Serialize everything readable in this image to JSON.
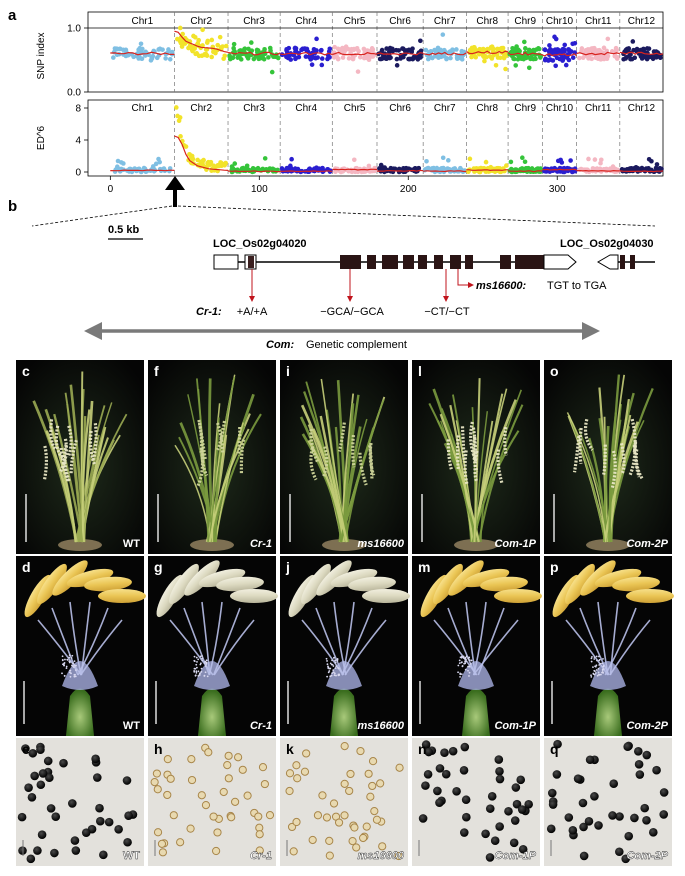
{
  "figure": {
    "panel_a": {
      "label": "a",
      "top_ylabel": "SNP index",
      "bottom_ylabel": "ED^6",
      "top_yticks": [
        "1.0",
        "0.0"
      ],
      "bottom_yticks": [
        "8",
        "4",
        "0"
      ],
      "xticks": [
        "0",
        "100",
        "200",
        "300"
      ],
      "chromosomes": [
        "Chr1",
        "Chr2",
        "Chr3",
        "Chr4",
        "Chr5",
        "Chr6",
        "Chr7",
        "Chr8",
        "Chr9",
        "Chr10",
        "Chr11",
        "Chr12"
      ],
      "chrom_colors": [
        "#7fbfe3",
        "#f2e32a",
        "#35c43a",
        "#2a1fd0",
        "#f4b7c2",
        "#1b1a5e",
        "#7fbfe3",
        "#f2e32a",
        "#35c43a",
        "#2a1fd0",
        "#f4b7c2",
        "#1b1a5e"
      ],
      "chrom_bounds": [
        0,
        43,
        79,
        114,
        149,
        179,
        210,
        239,
        267,
        290,
        313,
        342,
        371
      ]
    },
    "panel_b": {
      "label": "b",
      "scale_label": "0.5 kb",
      "gene_left": "LOC_Os02g04020",
      "gene_right": "LOC_Os02g04030",
      "mutation_label": "ms16600:",
      "mutation_text": "TGT to TGA",
      "cr1_label": "Cr-1:",
      "cr1_muts": [
        "+A/+A",
        "−GCA/−GCA",
        "−CT/−CT"
      ],
      "com_label": "Com:",
      "com_text": "Genetic complement"
    },
    "photo_rows": [
      {
        "panels": [
          {
            "letter": "c",
            "caption": "WT"
          },
          {
            "letter": "f",
            "caption": "Cr-1"
          },
          {
            "letter": "i",
            "caption": "ms16600"
          },
          {
            "letter": "l",
            "caption": "Com-1P"
          },
          {
            "letter": "o",
            "caption": "Com-2P"
          }
        ]
      },
      {
        "panels": [
          {
            "letter": "d",
            "caption": "WT"
          },
          {
            "letter": "g",
            "caption": "Cr-1"
          },
          {
            "letter": "j",
            "caption": "ms16600"
          },
          {
            "letter": "m",
            "caption": "Com-1P"
          },
          {
            "letter": "p",
            "caption": "Com-2P"
          }
        ]
      },
      {
        "panels": [
          {
            "letter": "e",
            "caption": "WT"
          },
          {
            "letter": "h",
            "caption": "Cr-1"
          },
          {
            "letter": "k",
            "caption": "ms16600"
          },
          {
            "letter": "n",
            "caption": "Com-1P"
          },
          {
            "letter": "q",
            "caption": "Com-2P"
          }
        ]
      }
    ]
  },
  "chart_data": [
    {
      "type": "scatter",
      "title": "",
      "ylabel": "SNP index",
      "xlabel": "",
      "xlim": [
        -15,
        371
      ],
      "ylim": [
        0,
        1.25
      ],
      "yticks": [
        0.0,
        1.0
      ],
      "xticks": [
        0,
        100,
        200,
        300
      ],
      "reference_line": 1.0,
      "series": [
        {
          "name": "Chr1",
          "x_range": [
            0,
            43
          ],
          "trend": 0.6
        },
        {
          "name": "Chr2",
          "x_range": [
            43,
            79
          ],
          "trend_points": [
            [
              45,
              0.95
            ],
            [
              50,
              0.8
            ],
            [
              60,
              0.7
            ],
            [
              70,
              0.68
            ],
            [
              78,
              0.62
            ]
          ]
        },
        {
          "name": "Chr3",
          "x_range": [
            79,
            114
          ],
          "trend": 0.6
        },
        {
          "name": "Chr4",
          "x_range": [
            114,
            149
          ],
          "trend": 0.6
        },
        {
          "name": "Chr5",
          "x_range": [
            149,
            179
          ],
          "trend": 0.6
        },
        {
          "name": "Chr6",
          "x_range": [
            179,
            210
          ],
          "trend": 0.6
        },
        {
          "name": "Chr7",
          "x_range": [
            210,
            239
          ],
          "trend": 0.6
        },
        {
          "name": "Chr8",
          "x_range": [
            239,
            267
          ],
          "trend": 0.62
        },
        {
          "name": "Chr9",
          "x_range": [
            267,
            290
          ],
          "trend": 0.6
        },
        {
          "name": "Chr10",
          "x_range": [
            290,
            313
          ],
          "trend": 0.58
        },
        {
          "name": "Chr11",
          "x_range": [
            313,
            342
          ],
          "trend": 0.6
        },
        {
          "name": "Chr12",
          "x_range": [
            342,
            371
          ],
          "trend": 0.6
        }
      ]
    },
    {
      "type": "scatter",
      "title": "",
      "ylabel": "ED^6",
      "xlabel": "",
      "xlim": [
        -15,
        371
      ],
      "ylim": [
        -0.5,
        9
      ],
      "yticks": [
        0,
        4,
        8
      ],
      "xticks": [
        0,
        100,
        200,
        300
      ],
      "series": [
        {
          "name": "Chr1",
          "x_range": [
            0,
            43
          ],
          "trend": 0.2
        },
        {
          "name": "Chr2",
          "x_range": [
            43,
            79
          ],
          "trend_points": [
            [
              45,
              4.5
            ],
            [
              48,
              3.5
            ],
            [
              52,
              1.6
            ],
            [
              58,
              0.8
            ],
            [
              66,
              0.4
            ],
            [
              78,
              0.2
            ]
          ]
        },
        {
          "name": "Chr3",
          "x_range": [
            79,
            114
          ],
          "trend": 0.1
        },
        {
          "name": "Chr4",
          "x_range": [
            114,
            149
          ],
          "trend": 0.1
        },
        {
          "name": "Chr5",
          "x_range": [
            149,
            179
          ],
          "trend": 0.3
        },
        {
          "name": "Chr6",
          "x_range": [
            179,
            210
          ],
          "trend": 0.15
        },
        {
          "name": "Chr7",
          "x_range": [
            210,
            239
          ],
          "trend": 0.1
        },
        {
          "name": "Chr8",
          "x_range": [
            239,
            267
          ],
          "trend": 0.25
        },
        {
          "name": "Chr9",
          "x_range": [
            267,
            290
          ],
          "trend": 0.1
        },
        {
          "name": "Chr10",
          "x_range": [
            290,
            313
          ],
          "trend": 0.3
        },
        {
          "name": "Chr11",
          "x_range": [
            313,
            342
          ],
          "trend": 0.15
        },
        {
          "name": "Chr12",
          "x_range": [
            342,
            371
          ],
          "trend": 0.1
        }
      ]
    }
  ]
}
